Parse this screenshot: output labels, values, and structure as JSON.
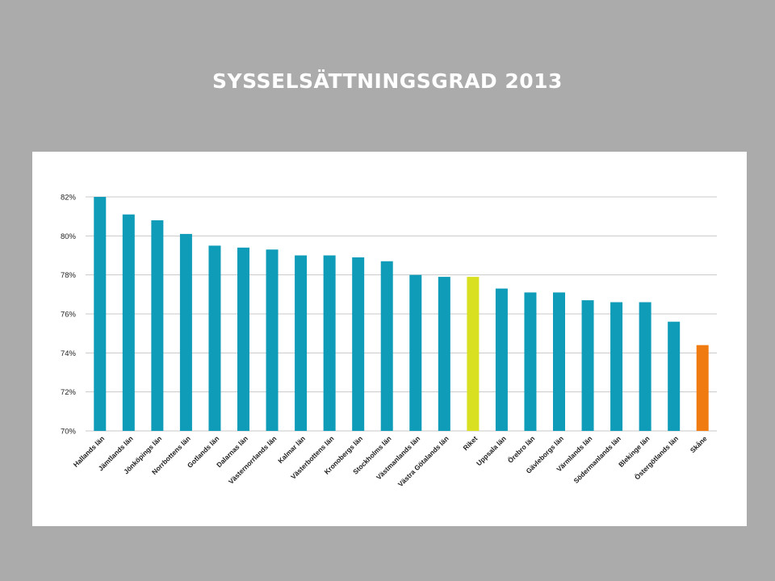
{
  "slide": {
    "title": "SYSSELSÄTTNINGSGRAD 2013"
  },
  "colors": {
    "background": "#ababab",
    "panel": "#ffffff",
    "bar_default": "#0e9cb8",
    "bar_riket": "#d9e021",
    "bar_skane": "#f07c11",
    "gridline": "#c8c8c8"
  },
  "chart_data": {
    "type": "bar",
    "title": "",
    "xlabel": "",
    "ylabel": "",
    "ylim": [
      70,
      82
    ],
    "yticks": [
      70,
      72,
      74,
      76,
      78,
      80,
      82
    ],
    "ytick_labels": [
      "70%",
      "72%",
      "74%",
      "76%",
      "78%",
      "80%",
      "82%"
    ],
    "grid": true,
    "legend": "none",
    "categories": [
      "Hallands län",
      "Jämtlands län",
      "Jönköpings län",
      "Norrbottens län",
      "Gotlands län",
      "Dalarnas län",
      "Västernorrlands län",
      "Kalmar län",
      "Västerbottens län",
      "Kronobergs län",
      "Stockholms län",
      "Västmanlands län",
      "Västra Götalands län",
      "Riket",
      "Uppsala län",
      "Örebro län",
      "Gävleborgs län",
      "Värmlands län",
      "Södermanlands län",
      "Blekinge län",
      "Östergötlands län",
      "Skåne"
    ],
    "values": [
      82.0,
      81.1,
      80.8,
      80.1,
      79.5,
      79.4,
      79.3,
      79.0,
      79.0,
      78.9,
      78.7,
      78.0,
      77.9,
      77.9,
      77.3,
      77.1,
      77.1,
      76.7,
      76.6,
      76.6,
      75.6,
      74.4
    ],
    "highlight_colors": {
      "Riket": "#d9e021",
      "Skåne": "#f07c11"
    }
  }
}
